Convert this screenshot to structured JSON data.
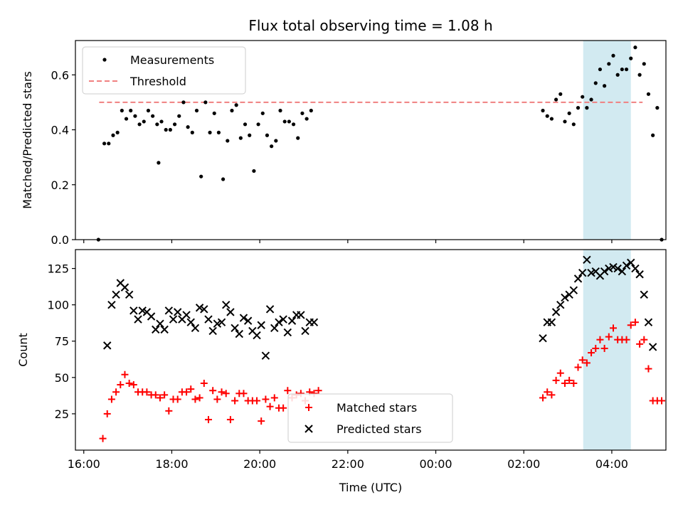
{
  "chart_data": {
    "type": "scatter",
    "title": "Flux total observing time = 1.08 h",
    "xlabel": "Time (UTC)",
    "x_ticks": [
      "16:00",
      "18:00",
      "20:00",
      "22:00",
      "00:00",
      "02:00",
      "04:00"
    ],
    "highlight_span": {
      "start": "03:21",
      "end": "04:26",
      "color": "#add8e6"
    },
    "top": {
      "ylabel": "Matched/Predicted stars",
      "ylim": [
        0,
        0.725
      ],
      "y_ticks": [
        "0.0",
        "0.2",
        "0.4",
        "0.6"
      ],
      "threshold": {
        "name": "Threshold",
        "value": 0.5,
        "x_start": "16:21",
        "x_end": "04:42",
        "color": "#f08080"
      },
      "legend": {
        "placement": "upper-left"
      },
      "series": [
        {
          "name": "Measurements",
          "color": "#000000",
          "marker": "dot",
          "points": [
            [
              "16:20",
              0.0
            ],
            [
              "16:28",
              0.35
            ],
            [
              "16:34",
              0.35
            ],
            [
              "16:40",
              0.38
            ],
            [
              "16:46",
              0.39
            ],
            [
              "16:52",
              0.47
            ],
            [
              "16:58",
              0.44
            ],
            [
              "17:04",
              0.47
            ],
            [
              "17:10",
              0.45
            ],
            [
              "17:16",
              0.42
            ],
            [
              "17:22",
              0.43
            ],
            [
              "17:28",
              0.47
            ],
            [
              "17:34",
              0.45
            ],
            [
              "17:40",
              0.42
            ],
            [
              "17:46",
              0.43
            ],
            [
              "17:42",
              0.28
            ],
            [
              "17:52",
              0.4
            ],
            [
              "17:58",
              0.4
            ],
            [
              "18:04",
              0.42
            ],
            [
              "18:10",
              0.45
            ],
            [
              "18:16",
              0.5
            ],
            [
              "18:22",
              0.41
            ],
            [
              "18:28",
              0.39
            ],
            [
              "18:34",
              0.47
            ],
            [
              "18:40",
              0.23
            ],
            [
              "18:46",
              0.5
            ],
            [
              "18:52",
              0.39
            ],
            [
              "18:58",
              0.46
            ],
            [
              "19:04",
              0.39
            ],
            [
              "19:10",
              0.22
            ],
            [
              "19:16",
              0.36
            ],
            [
              "19:22",
              0.47
            ],
            [
              "19:28",
              0.49
            ],
            [
              "19:34",
              0.37
            ],
            [
              "19:40",
              0.42
            ],
            [
              "19:46",
              0.38
            ],
            [
              "19:52",
              0.25
            ],
            [
              "19:58",
              0.42
            ],
            [
              "20:04",
              0.46
            ],
            [
              "20:10",
              0.38
            ],
            [
              "20:16",
              0.34
            ],
            [
              "20:22",
              0.36
            ],
            [
              "20:28",
              0.47
            ],
            [
              "20:34",
              0.43
            ],
            [
              "20:40",
              0.43
            ],
            [
              "20:46",
              0.42
            ],
            [
              "20:52",
              0.37
            ],
            [
              "20:58",
              0.46
            ],
            [
              "21:04",
              0.44
            ],
            [
              "21:10",
              0.47
            ],
            [
              "02:26",
              0.47
            ],
            [
              "02:32",
              0.45
            ],
            [
              "02:38",
              0.44
            ],
            [
              "02:44",
              0.51
            ],
            [
              "02:50",
              0.53
            ],
            [
              "02:56",
              0.43
            ],
            [
              "03:02",
              0.46
            ],
            [
              "03:08",
              0.42
            ],
            [
              "03:14",
              0.48
            ],
            [
              "03:20",
              0.52
            ],
            [
              "03:26",
              0.48
            ],
            [
              "03:32",
              0.51
            ],
            [
              "03:38",
              0.57
            ],
            [
              "03:44",
              0.62
            ],
            [
              "03:50",
              0.56
            ],
            [
              "03:56",
              0.64
            ],
            [
              "04:02",
              0.67
            ],
            [
              "04:08",
              0.6
            ],
            [
              "04:14",
              0.62
            ],
            [
              "04:20",
              0.62
            ],
            [
              "04:26",
              0.66
            ],
            [
              "04:32",
              0.7
            ],
            [
              "04:38",
              0.6
            ],
            [
              "04:44",
              0.64
            ],
            [
              "04:50",
              0.53
            ],
            [
              "04:56",
              0.38
            ],
            [
              "05:02",
              0.48
            ],
            [
              "05:08",
              0.0
            ]
          ]
        }
      ]
    },
    "bottom": {
      "ylabel": "Count",
      "ylim": [
        0,
        138
      ],
      "y_ticks": [
        "25",
        "50",
        "75",
        "100",
        "125"
      ],
      "legend": {
        "placement": "lower-center"
      },
      "series": [
        {
          "name": "Matched stars",
          "color": "#ff0000",
          "marker": "plus",
          "points": [
            [
              "16:26",
              8
            ],
            [
              "16:32",
              25
            ],
            [
              "16:38",
              35
            ],
            [
              "16:44",
              40
            ],
            [
              "16:50",
              45
            ],
            [
              "16:56",
              52
            ],
            [
              "17:02",
              46
            ],
            [
              "17:08",
              45
            ],
            [
              "17:14",
              40
            ],
            [
              "17:20",
              40
            ],
            [
              "17:26",
              40
            ],
            [
              "17:32",
              38
            ],
            [
              "17:38",
              38
            ],
            [
              "17:44",
              36
            ],
            [
              "17:50",
              38
            ],
            [
              "17:56",
              27
            ],
            [
              "18:02",
              35
            ],
            [
              "18:08",
              35
            ],
            [
              "18:14",
              40
            ],
            [
              "18:20",
              40
            ],
            [
              "18:26",
              42
            ],
            [
              "18:32",
              35
            ],
            [
              "18:38",
              36
            ],
            [
              "18:44",
              46
            ],
            [
              "18:50",
              21
            ],
            [
              "18:56",
              41
            ],
            [
              "19:02",
              35
            ],
            [
              "19:08",
              40
            ],
            [
              "19:14",
              39
            ],
            [
              "19:20",
              21
            ],
            [
              "19:26",
              34
            ],
            [
              "19:32",
              39
            ],
            [
              "19:38",
              39
            ],
            [
              "19:44",
              34
            ],
            [
              "19:50",
              34
            ],
            [
              "19:56",
              34
            ],
            [
              "20:02",
              20
            ],
            [
              "20:08",
              35
            ],
            [
              "20:14",
              30
            ],
            [
              "20:20",
              36
            ],
            [
              "20:26",
              29
            ],
            [
              "20:32",
              29
            ],
            [
              "20:38",
              41
            ],
            [
              "20:44",
              36
            ],
            [
              "20:50",
              38
            ],
            [
              "20:56",
              39
            ],
            [
              "21:02",
              34
            ],
            [
              "21:08",
              40
            ],
            [
              "21:14",
              39
            ],
            [
              "21:20",
              41
            ],
            [
              "02:26",
              36
            ],
            [
              "02:32",
              40
            ],
            [
              "02:38",
              38
            ],
            [
              "02:44",
              48
            ],
            [
              "02:50",
              53
            ],
            [
              "02:56",
              46
            ],
            [
              "03:02",
              48
            ],
            [
              "03:08",
              46
            ],
            [
              "03:14",
              57
            ],
            [
              "03:20",
              62
            ],
            [
              "03:26",
              60
            ],
            [
              "03:32",
              67
            ],
            [
              "03:38",
              70
            ],
            [
              "03:44",
              76
            ],
            [
              "03:50",
              70
            ],
            [
              "03:56",
              78
            ],
            [
              "04:02",
              84
            ],
            [
              "04:08",
              76
            ],
            [
              "04:14",
              76
            ],
            [
              "04:20",
              76
            ],
            [
              "04:26",
              86
            ],
            [
              "04:32",
              88
            ],
            [
              "04:38",
              73
            ],
            [
              "04:44",
              76
            ],
            [
              "04:50",
              56
            ],
            [
              "04:56",
              34
            ],
            [
              "05:02",
              34
            ],
            [
              "05:08",
              34
            ]
          ]
        },
        {
          "name": "Predicted stars",
          "color": "#000000",
          "marker": "x",
          "points": [
            [
              "16:32",
              72
            ],
            [
              "16:38",
              100
            ],
            [
              "16:44",
              107
            ],
            [
              "16:50",
              115
            ],
            [
              "16:56",
              112
            ],
            [
              "17:02",
              107
            ],
            [
              "17:08",
              96
            ],
            [
              "17:14",
              90
            ],
            [
              "17:20",
              96
            ],
            [
              "17:26",
              95
            ],
            [
              "17:32",
              92
            ],
            [
              "17:38",
              83
            ],
            [
              "17:44",
              87
            ],
            [
              "17:50",
              83
            ],
            [
              "17:56",
              96
            ],
            [
              "18:02",
              90
            ],
            [
              "18:08",
              95
            ],
            [
              "18:14",
              90
            ],
            [
              "18:20",
              93
            ],
            [
              "18:26",
              88
            ],
            [
              "18:32",
              84
            ],
            [
              "18:38",
              98
            ],
            [
              "18:44",
              97
            ],
            [
              "18:50",
              90
            ],
            [
              "18:56",
              82
            ],
            [
              "19:02",
              87
            ],
            [
              "19:08",
              88
            ],
            [
              "19:14",
              100
            ],
            [
              "19:20",
              95
            ],
            [
              "19:26",
              84
            ],
            [
              "19:32",
              80
            ],
            [
              "19:38",
              91
            ],
            [
              "19:44",
              89
            ],
            [
              "19:50",
              82
            ],
            [
              "19:56",
              79
            ],
            [
              "20:02",
              86
            ],
            [
              "20:08",
              65
            ],
            [
              "20:14",
              97
            ],
            [
              "20:20",
              84
            ],
            [
              "20:26",
              88
            ],
            [
              "20:32",
              90
            ],
            [
              "20:38",
              81
            ],
            [
              "20:44",
              89
            ],
            [
              "20:50",
              93
            ],
            [
              "20:56",
              93
            ],
            [
              "21:02",
              82
            ],
            [
              "21:08",
              88
            ],
            [
              "21:14",
              88
            ],
            [
              "02:26",
              77
            ],
            [
              "02:32",
              88
            ],
            [
              "02:38",
              88
            ],
            [
              "02:44",
              95
            ],
            [
              "02:50",
              100
            ],
            [
              "02:56",
              105
            ],
            [
              "03:02",
              107
            ],
            [
              "03:08",
              110
            ],
            [
              "03:14",
              118
            ],
            [
              "03:20",
              122
            ],
            [
              "03:26",
              131
            ],
            [
              "03:32",
              122
            ],
            [
              "03:38",
              123
            ],
            [
              "03:44",
              120
            ],
            [
              "03:50",
              123
            ],
            [
              "03:56",
              125
            ],
            [
              "04:02",
              126
            ],
            [
              "04:08",
              125
            ],
            [
              "04:14",
              123
            ],
            [
              "04:20",
              127
            ],
            [
              "04:26",
              129
            ],
            [
              "04:32",
              125
            ],
            [
              "04:38",
              121
            ],
            [
              "04:44",
              107
            ],
            [
              "04:50",
              88
            ],
            [
              "04:56",
              71
            ]
          ]
        }
      ]
    }
  }
}
